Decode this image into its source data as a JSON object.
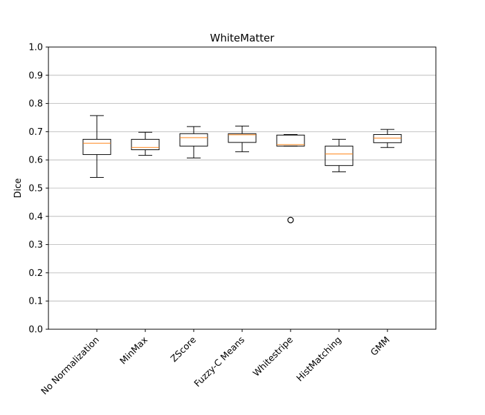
{
  "chart_data": {
    "type": "box",
    "title": "WhiteMatter",
    "xlabel": "",
    "ylabel": "Dice",
    "ylim": [
      0.0,
      1.0
    ],
    "yticks": [
      "0.0",
      "0.1",
      "0.2",
      "0.3",
      "0.4",
      "0.5",
      "0.6",
      "0.7",
      "0.8",
      "0.9",
      "1.0"
    ],
    "grid": "horizontal",
    "categories": [
      "No Normalization",
      "MinMax",
      "ZScore",
      "Fuzzy-C Means",
      "Whitestripe",
      "HistMatching",
      "GMM"
    ],
    "boxes": [
      {
        "whisker_low": 0.538,
        "q1": 0.619,
        "median": 0.659,
        "q3": 0.673,
        "whisker_high": 0.757,
        "outliers": []
      },
      {
        "whisker_low": 0.616,
        "q1": 0.636,
        "median": 0.644,
        "q3": 0.673,
        "whisker_high": 0.698,
        "outliers": []
      },
      {
        "whisker_low": 0.607,
        "q1": 0.649,
        "median": 0.679,
        "q3": 0.693,
        "whisker_high": 0.718,
        "outliers": []
      },
      {
        "whisker_low": 0.629,
        "q1": 0.662,
        "median": 0.689,
        "q3": 0.693,
        "whisker_high": 0.72,
        "outliers": []
      },
      {
        "whisker_low": 0.649,
        "q1": 0.649,
        "median": 0.654,
        "q3": 0.688,
        "whisker_high": 0.69,
        "outliers": [
          0.387
        ]
      },
      {
        "whisker_low": 0.558,
        "q1": 0.58,
        "median": 0.621,
        "q3": 0.649,
        "whisker_high": 0.673,
        "outliers": []
      },
      {
        "whisker_low": 0.644,
        "q1": 0.661,
        "median": 0.677,
        "q3": 0.69,
        "whisker_high": 0.708,
        "outliers": []
      }
    ],
    "colors": {
      "box": "#000000",
      "median": "#ff7f0e",
      "grid": "#b0b0b0"
    }
  }
}
